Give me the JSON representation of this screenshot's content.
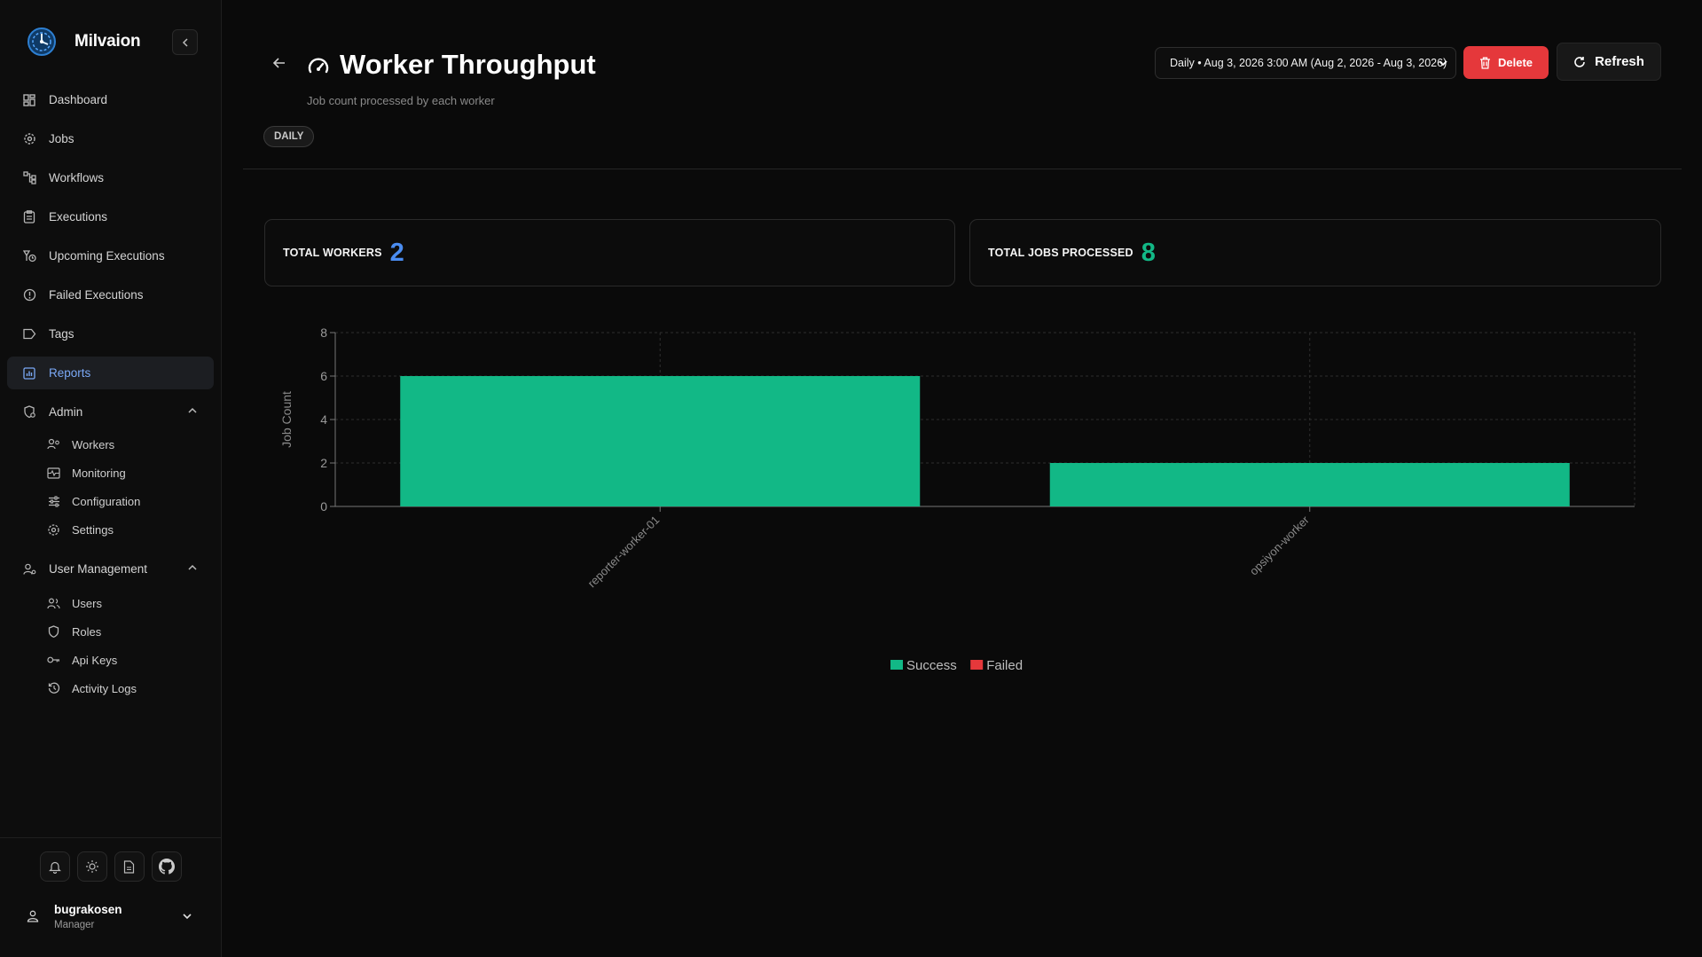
{
  "app": {
    "name": "Milvaion"
  },
  "sidebar": {
    "items": [
      {
        "label": "Dashboard",
        "icon": "dashboard-icon"
      },
      {
        "label": "Jobs",
        "icon": "jobs-icon"
      },
      {
        "label": "Workflows",
        "icon": "workflow-icon"
      },
      {
        "label": "Executions",
        "icon": "executions-icon"
      },
      {
        "label": "Upcoming Executions",
        "icon": "upcoming-icon"
      },
      {
        "label": "Failed Executions",
        "icon": "alert-circle-icon"
      },
      {
        "label": "Tags",
        "icon": "tag-icon"
      },
      {
        "label": "Reports",
        "icon": "chart-icon",
        "active": true
      }
    ],
    "admin": {
      "label": "Admin",
      "items": [
        {
          "label": "Workers"
        },
        {
          "label": "Monitoring"
        },
        {
          "label": "Configuration"
        },
        {
          "label": "Settings"
        }
      ]
    },
    "user_management": {
      "label": "User Management",
      "items": [
        {
          "label": "Users"
        },
        {
          "label": "Roles"
        },
        {
          "label": "Api Keys"
        },
        {
          "label": "Activity Logs"
        }
      ]
    },
    "user": {
      "name": "bugrakosen",
      "role": "Manager"
    }
  },
  "header": {
    "title": "Worker Throughput",
    "subtitle": "Job count processed by each worker",
    "badge": "DAILY",
    "period": "Daily • Aug 3, 2026 3:00 AM (Aug 2, 2026 - Aug 3, 2026)",
    "delete_label": "Delete",
    "refresh_label": "Refresh"
  },
  "stats": {
    "total_workers_label": "TOTAL WORKERS",
    "total_workers": "2",
    "total_jobs_label": "TOTAL JOBS PROCESSED",
    "total_jobs": "8"
  },
  "colors": {
    "success": "#12b886",
    "failed": "#e5383b",
    "accent_blue": "#4a8cf0"
  },
  "chart_data": {
    "type": "bar",
    "categories": [
      "reporter-worker-01",
      "opsiyon-worker"
    ],
    "series": [
      {
        "name": "Success",
        "values": [
          6,
          2
        ],
        "color": "#12b886"
      },
      {
        "name": "Failed",
        "values": [
          0,
          0
        ],
        "color": "#e5383b"
      }
    ],
    "ylabel": "Job Count",
    "ylim": [
      0,
      8
    ],
    "yticks": [
      0,
      2,
      4,
      6,
      8
    ],
    "grid": true,
    "legend": "bottom-center"
  }
}
